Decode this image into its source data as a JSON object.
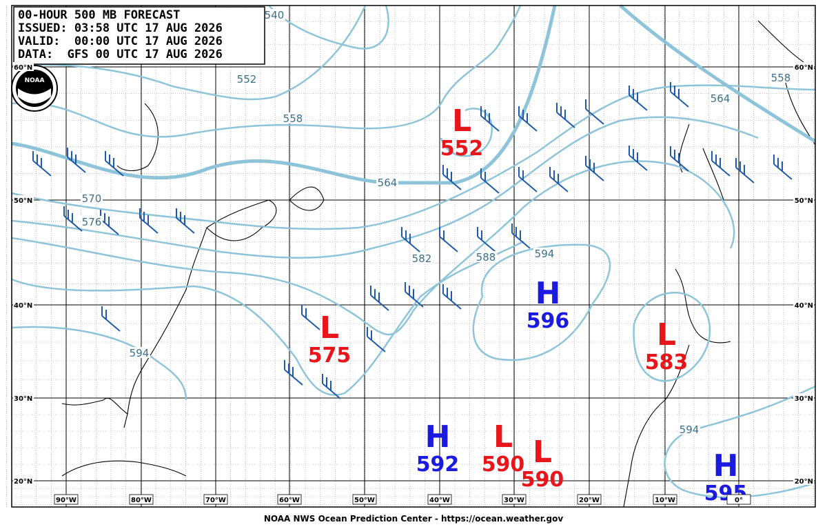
{
  "header": {
    "lines": [
      "00-HOUR 500 MB FORECAST",
      "ISSUED: 03:58 UTC 17 AUG 2026",
      "VALID:  00:00 UTC 17 AUG 2026",
      "DATA:  GFS 00 UTC 17 AUG 2026"
    ]
  },
  "logo": "NOAA",
  "latitude_labels": [
    "60°N",
    "50°N",
    "40°N",
    "30°N",
    "20°N"
  ],
  "longitude_labels": [
    "90°W",
    "80°W",
    "70°W",
    "60°W",
    "50°W",
    "40°W",
    "30°W",
    "20°W",
    "10°W",
    "0°"
  ],
  "centers": [
    {
      "type": "L",
      "value": "552"
    },
    {
      "type": "L",
      "value": "575"
    },
    {
      "type": "H",
      "value": "596"
    },
    {
      "type": "L",
      "value": "583"
    },
    {
      "type": "H",
      "value": "592"
    },
    {
      "type": "L",
      "value": "590"
    },
    {
      "type": "L",
      "value": "590"
    },
    {
      "type": "H",
      "value": "595"
    }
  ],
  "contour_labels": [
    "540",
    "552",
    "558",
    "564",
    "570",
    "576",
    "582",
    "588",
    "594",
    "594",
    "594",
    "564",
    "558"
  ],
  "footer": "NOAA NWS Ocean Prediction Center - https://ocean.weather.gov"
}
